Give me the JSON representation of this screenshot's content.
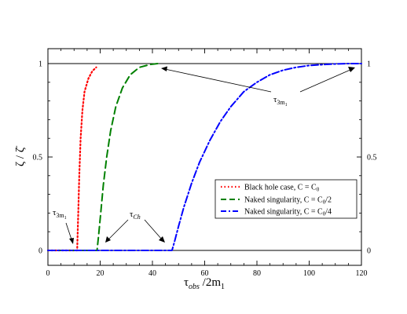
{
  "chart_data": {
    "type": "line",
    "xlabel_main": "τ",
    "xlabel_sub": "obs",
    "xlabel_rest": " /2m",
    "xlabel_rest_sub": "1",
    "ylabel": "ζ / ζ̄",
    "xlim": [
      0,
      120
    ],
    "ylim": [
      -0.08,
      1.08
    ],
    "x_ticks": [
      0,
      20,
      40,
      60,
      80,
      100,
      120
    ],
    "y_ticks": [
      0,
      0.5,
      1
    ],
    "y_tick_labels": [
      "0",
      "0.5",
      "1"
    ],
    "x_minor_step": 5,
    "y_minor_step": 0.1,
    "reference_lines": [
      0,
      1
    ],
    "series": [
      {
        "name": "Black hole case,    C = C",
        "name_sub": "0",
        "color": "#ff0000",
        "dash": "1.5,3",
        "width": 2.2,
        "points": [
          [
            0,
            0
          ],
          [
            11.2,
            0
          ],
          [
            11.6,
            0.2
          ],
          [
            12.0,
            0.4
          ],
          [
            12.5,
            0.6
          ],
          [
            13.2,
            0.75
          ],
          [
            14.0,
            0.85
          ],
          [
            15.5,
            0.92
          ],
          [
            17.0,
            0.96
          ],
          [
            18.5,
            0.98
          ]
        ]
      },
      {
        "name": "Naked singularity, C = C",
        "name_sub": "0",
        "name_tail": "/2",
        "color": "#008000",
        "dash": "9,5",
        "width": 2,
        "points": [
          [
            0,
            0
          ],
          [
            18.8,
            0
          ],
          [
            19.4,
            0.08
          ],
          [
            20.2,
            0.2
          ],
          [
            21.2,
            0.35
          ],
          [
            22.5,
            0.5
          ],
          [
            24.0,
            0.64
          ],
          [
            26.0,
            0.77
          ],
          [
            28.5,
            0.87
          ],
          [
            31.5,
            0.94
          ],
          [
            35.0,
            0.98
          ],
          [
            39.0,
            0.995
          ],
          [
            42.0,
            1.0
          ]
        ]
      },
      {
        "name": "Naked singularity, C = C",
        "name_sub": "0",
        "name_tail": "/4",
        "color": "#0000ff",
        "dash": "9,3,2,3",
        "width": 2,
        "points": [
          [
            0,
            0
          ],
          [
            47.5,
            0
          ],
          [
            48.5,
            0.05
          ],
          [
            50,
            0.13
          ],
          [
            52,
            0.23
          ],
          [
            55,
            0.36
          ],
          [
            58,
            0.47
          ],
          [
            62,
            0.59
          ],
          [
            66,
            0.69
          ],
          [
            70,
            0.77
          ],
          [
            75,
            0.85
          ],
          [
            80,
            0.9
          ],
          [
            85,
            0.94
          ],
          [
            90,
            0.965
          ],
          [
            95,
            0.98
          ],
          [
            100,
            0.99
          ],
          [
            108,
            0.997
          ],
          [
            115,
            1.0
          ],
          [
            120,
            1.0
          ]
        ]
      }
    ],
    "annotations": {
      "top_label": "τ",
      "top_sub": "3m",
      "top_subsub": "1",
      "left_label": "τ",
      "left_sub": "3m",
      "left_subsub": "1",
      "ch_label": "τ",
      "ch_sub": "Ch"
    }
  }
}
